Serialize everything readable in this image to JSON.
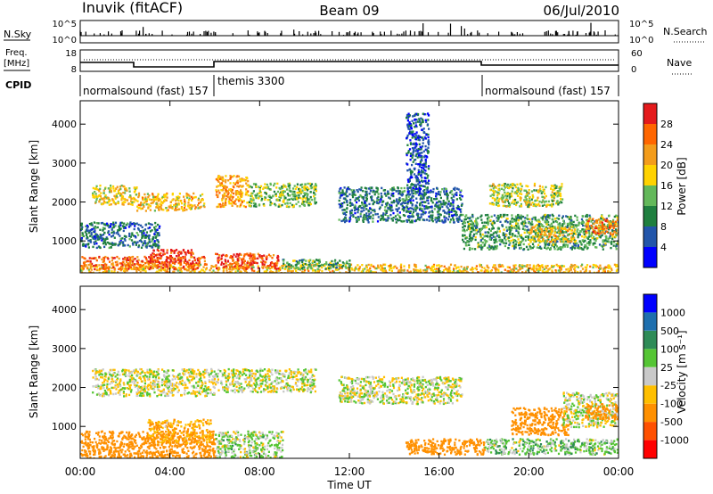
{
  "header": {
    "station": "Inuvik (fitACF)",
    "beam": "Beam 09",
    "date": "06/Jul/2010"
  },
  "panels": {
    "nsky": {
      "left_label": "N.Sky",
      "right_label": "N.Search",
      "left_ticks": [
        "10^5",
        "10^0"
      ],
      "right_ticks": [
        "10^5",
        "10^0"
      ]
    },
    "freq": {
      "left_label_top": "Freq.",
      "left_label_unit": "[MHz]",
      "left_ticks": [
        "18",
        "8"
      ],
      "right_ticks": [
        "60",
        "0"
      ],
      "right_label": "Nave"
    },
    "cpid": {
      "label": "CPID",
      "segments": [
        {
          "text": "normalsound (fast) 157",
          "start_h": 0
        },
        {
          "text": "themis 3300",
          "start_h": 6
        },
        {
          "text": "normalsound (fast) 157",
          "start_h": 18
        }
      ]
    }
  },
  "colorbars": {
    "power": {
      "label": "Power [dB]",
      "colors": [
        "#0000ff",
        "#2255aa",
        "#1f7f3f",
        "#63b85a",
        "#ffd200",
        "#f39c1b",
        "#ff6600",
        "#e41a1c"
      ],
      "ticks": [
        "4",
        "8",
        "12",
        "16",
        "20",
        "24",
        "28"
      ]
    },
    "velocity": {
      "label": "Velocity [m s⁻¹]",
      "colors": [
        "#ff0000",
        "#ff5000",
        "#ff9000",
        "#ffbf00",
        "#c9c9c9",
        "#55c534",
        "#2e8b57",
        "#1e6fae",
        "#0000ff"
      ],
      "ticks": [
        "-1000",
        "-500",
        "-100",
        "-25",
        "25",
        "100",
        "500",
        "1000"
      ]
    }
  },
  "chart_data": [
    {
      "type": "heatmap",
      "title": "",
      "quantity": "Power [dB]",
      "xlabel": "",
      "ylabel": "Slant Range [km]",
      "xlim_hours": [
        0,
        24
      ],
      "ylim": [
        180,
        4600
      ],
      "yticks": [
        1000,
        2000,
        3000,
        4000
      ],
      "xticks": [
        "00:00",
        "04:00",
        "08:00",
        "12:00",
        "16:00",
        "20:00",
        "00:00"
      ],
      "regions": [
        {
          "t": [
            0,
            24
          ],
          "r": [
            180,
            420
          ],
          "value": 20
        },
        {
          "t": [
            0,
            5.6
          ],
          "r": [
            300,
            620
          ],
          "value": 26
        },
        {
          "t": [
            3.0,
            5.0
          ],
          "r": [
            450,
            800
          ],
          "value": 28
        },
        {
          "t": [
            6.0,
            8.8
          ],
          "r": [
            300,
            700
          ],
          "value": 27
        },
        {
          "t": [
            9.0,
            12
          ],
          "r": [
            300,
            550
          ],
          "value": 12
        },
        {
          "t": [
            0.5,
            2.5
          ],
          "r": [
            1950,
            2450
          ],
          "value": 18
        },
        {
          "t": [
            2.5,
            5.5
          ],
          "r": [
            1800,
            2250
          ],
          "value": 20
        },
        {
          "t": [
            6.0,
            7.5
          ],
          "r": [
            1900,
            2700
          ],
          "value": 22
        },
        {
          "t": [
            7.5,
            10.5
          ],
          "r": [
            1900,
            2500
          ],
          "value": 14
        },
        {
          "t": [
            11.5,
            17
          ],
          "r": [
            1500,
            2400
          ],
          "value": 8
        },
        {
          "t": [
            17,
            24
          ],
          "r": [
            800,
            1700
          ],
          "value": 12
        },
        {
          "t": [
            18.2,
            21.5
          ],
          "r": [
            1900,
            2500
          ],
          "value": 16
        },
        {
          "t": [
            20,
            22
          ],
          "r": [
            1000,
            1400
          ],
          "value": 20
        },
        {
          "t": [
            22.5,
            24
          ],
          "r": [
            1200,
            1600
          ],
          "value": 24
        },
        {
          "t": [
            0,
            3.5
          ],
          "r": [
            850,
            1500
          ],
          "value": 8
        },
        {
          "t": [
            14.5,
            15.5
          ],
          "r": [
            2200,
            4300
          ],
          "value": 6
        }
      ]
    },
    {
      "type": "heatmap",
      "title": "",
      "quantity": "Velocity [m s⁻¹]",
      "xlabel": "Time UT",
      "ylabel": "Slant Range [km]",
      "xlim_hours": [
        0,
        24
      ],
      "ylim": [
        180,
        4600
      ],
      "yticks": [
        1000,
        2000,
        3000,
        4000
      ],
      "xticks": [
        "00:00",
        "04:00",
        "08:00",
        "12:00",
        "16:00",
        "20:00",
        "00:00"
      ],
      "regions": [
        {
          "t": [
            0,
            6
          ],
          "r": [
            180,
            900
          ],
          "value": -300
        },
        {
          "t": [
            3.0,
            5.8
          ],
          "r": [
            600,
            1200
          ],
          "value": -100
        },
        {
          "t": [
            0.5,
            6
          ],
          "r": [
            1800,
            2500
          ],
          "value": -10
        },
        {
          "t": [
            6,
            9
          ],
          "r": [
            200,
            900
          ],
          "value": 30
        },
        {
          "t": [
            6,
            10.5
          ],
          "r": [
            1900,
            2500
          ],
          "value": 0
        },
        {
          "t": [
            11.5,
            17
          ],
          "r": [
            1600,
            2300
          ],
          "value": 0
        },
        {
          "t": [
            14.5,
            18
          ],
          "r": [
            300,
            700
          ],
          "value": -300
        },
        {
          "t": [
            18,
            24
          ],
          "r": [
            300,
            700
          ],
          "value": 50
        },
        {
          "t": [
            19.2,
            21.8
          ],
          "r": [
            800,
            1500
          ],
          "value": -400
        },
        {
          "t": [
            21.5,
            24
          ],
          "r": [
            1000,
            1900
          ],
          "value": 0
        },
        {
          "t": [
            22.5,
            24
          ],
          "r": [
            1200,
            1600
          ],
          "value": -200
        }
      ]
    }
  ]
}
